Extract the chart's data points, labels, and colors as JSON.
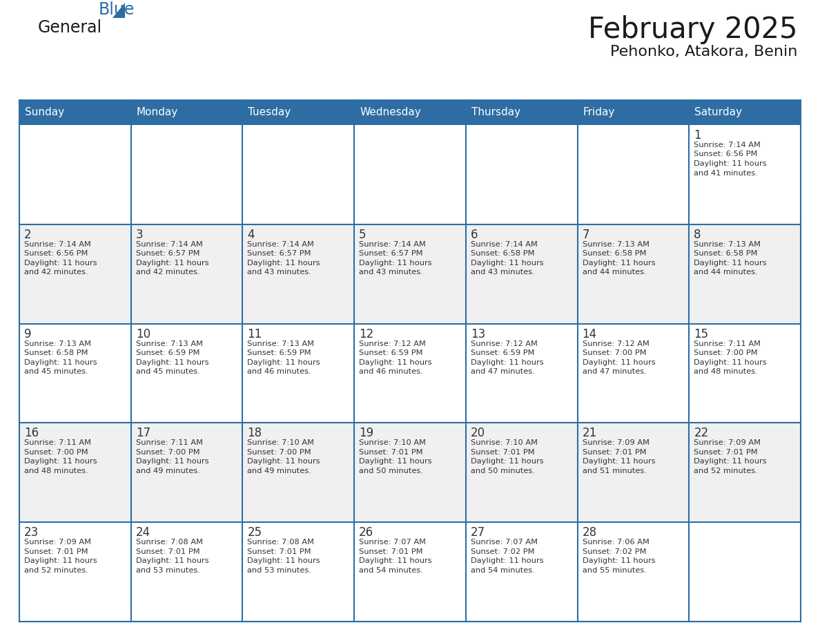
{
  "title": "February 2025",
  "subtitle": "Pehonko, Atakora, Benin",
  "header_bg": "#2E6DA4",
  "header_text_color": "#FFFFFF",
  "border_color": "#2E6DA4",
  "cell_border_color": "#2E6DA4",
  "text_color": "#333333",
  "day_number_color": "#333333",
  "days_of_week": [
    "Sunday",
    "Monday",
    "Tuesday",
    "Wednesday",
    "Thursday",
    "Friday",
    "Saturday"
  ],
  "logo_general_color": "#1a1a1a",
  "logo_blue_color": "#2E6DA4",
  "logo_triangle_color": "#2E6DA4",
  "title_color": "#1a1a1a",
  "subtitle_color": "#1a1a1a",
  "row_bg_colors": [
    "#FFFFFF",
    "#F0F0F0",
    "#FFFFFF",
    "#F0F0F0",
    "#FFFFFF"
  ],
  "calendar_data": [
    [
      null,
      null,
      null,
      null,
      null,
      null,
      {
        "day": 1,
        "sunrise": "7:14 AM",
        "sunset": "6:56 PM",
        "daylight": "11 hours and 41 minutes."
      }
    ],
    [
      {
        "day": 2,
        "sunrise": "7:14 AM",
        "sunset": "6:56 PM",
        "daylight": "11 hours and 42 minutes."
      },
      {
        "day": 3,
        "sunrise": "7:14 AM",
        "sunset": "6:57 PM",
        "daylight": "11 hours and 42 minutes."
      },
      {
        "day": 4,
        "sunrise": "7:14 AM",
        "sunset": "6:57 PM",
        "daylight": "11 hours and 43 minutes."
      },
      {
        "day": 5,
        "sunrise": "7:14 AM",
        "sunset": "6:57 PM",
        "daylight": "11 hours and 43 minutes."
      },
      {
        "day": 6,
        "sunrise": "7:14 AM",
        "sunset": "6:58 PM",
        "daylight": "11 hours and 43 minutes."
      },
      {
        "day": 7,
        "sunrise": "7:13 AM",
        "sunset": "6:58 PM",
        "daylight": "11 hours and 44 minutes."
      },
      {
        "day": 8,
        "sunrise": "7:13 AM",
        "sunset": "6:58 PM",
        "daylight": "11 hours and 44 minutes."
      }
    ],
    [
      {
        "day": 9,
        "sunrise": "7:13 AM",
        "sunset": "6:58 PM",
        "daylight": "11 hours and 45 minutes."
      },
      {
        "day": 10,
        "sunrise": "7:13 AM",
        "sunset": "6:59 PM",
        "daylight": "11 hours and 45 minutes."
      },
      {
        "day": 11,
        "sunrise": "7:13 AM",
        "sunset": "6:59 PM",
        "daylight": "11 hours and 46 minutes."
      },
      {
        "day": 12,
        "sunrise": "7:12 AM",
        "sunset": "6:59 PM",
        "daylight": "11 hours and 46 minutes."
      },
      {
        "day": 13,
        "sunrise": "7:12 AM",
        "sunset": "6:59 PM",
        "daylight": "11 hours and 47 minutes."
      },
      {
        "day": 14,
        "sunrise": "7:12 AM",
        "sunset": "7:00 PM",
        "daylight": "11 hours and 47 minutes."
      },
      {
        "day": 15,
        "sunrise": "7:11 AM",
        "sunset": "7:00 PM",
        "daylight": "11 hours and 48 minutes."
      }
    ],
    [
      {
        "day": 16,
        "sunrise": "7:11 AM",
        "sunset": "7:00 PM",
        "daylight": "11 hours and 48 minutes."
      },
      {
        "day": 17,
        "sunrise": "7:11 AM",
        "sunset": "7:00 PM",
        "daylight": "11 hours and 49 minutes."
      },
      {
        "day": 18,
        "sunrise": "7:10 AM",
        "sunset": "7:00 PM",
        "daylight": "11 hours and 49 minutes."
      },
      {
        "day": 19,
        "sunrise": "7:10 AM",
        "sunset": "7:01 PM",
        "daylight": "11 hours and 50 minutes."
      },
      {
        "day": 20,
        "sunrise": "7:10 AM",
        "sunset": "7:01 PM",
        "daylight": "11 hours and 50 minutes."
      },
      {
        "day": 21,
        "sunrise": "7:09 AM",
        "sunset": "7:01 PM",
        "daylight": "11 hours and 51 minutes."
      },
      {
        "day": 22,
        "sunrise": "7:09 AM",
        "sunset": "7:01 PM",
        "daylight": "11 hours and 52 minutes."
      }
    ],
    [
      {
        "day": 23,
        "sunrise": "7:09 AM",
        "sunset": "7:01 PM",
        "daylight": "11 hours and 52 minutes."
      },
      {
        "day": 24,
        "sunrise": "7:08 AM",
        "sunset": "7:01 PM",
        "daylight": "11 hours and 53 minutes."
      },
      {
        "day": 25,
        "sunrise": "7:08 AM",
        "sunset": "7:01 PM",
        "daylight": "11 hours and 53 minutes."
      },
      {
        "day": 26,
        "sunrise": "7:07 AM",
        "sunset": "7:01 PM",
        "daylight": "11 hours and 54 minutes."
      },
      {
        "day": 27,
        "sunrise": "7:07 AM",
        "sunset": "7:02 PM",
        "daylight": "11 hours and 54 minutes."
      },
      {
        "day": 28,
        "sunrise": "7:06 AM",
        "sunset": "7:02 PM",
        "daylight": "11 hours and 55 minutes."
      },
      null
    ]
  ]
}
